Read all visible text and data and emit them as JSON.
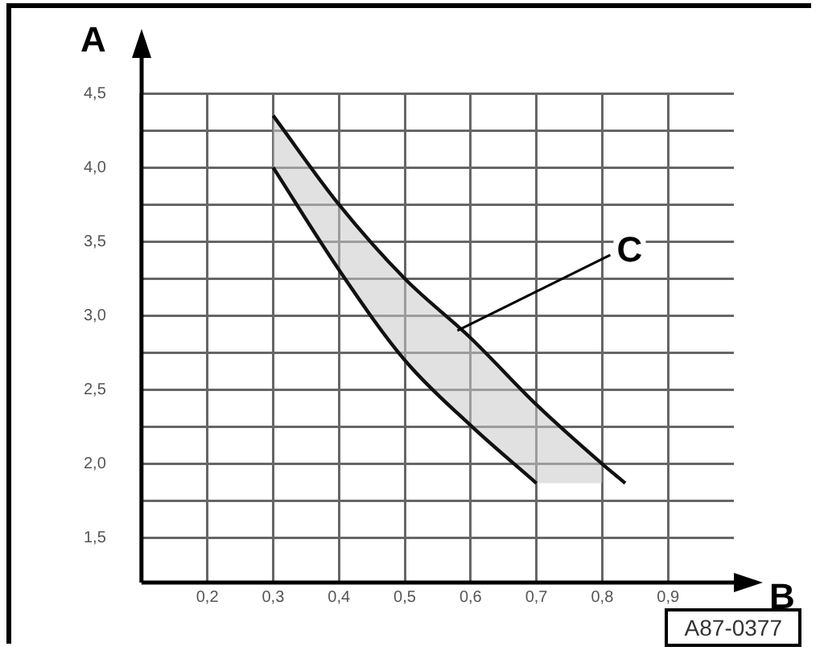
{
  "chart_data": {
    "type": "line",
    "xlabel": "B",
    "ylabel": "A",
    "xlim": [
      0.1,
      1.0
    ],
    "ylim": [
      1.2,
      4.5
    ],
    "xticks": [
      {
        "value": 0.2,
        "label": "0,2"
      },
      {
        "value": 0.3,
        "label": "0,3"
      },
      {
        "value": 0.4,
        "label": "0,4"
      },
      {
        "value": 0.5,
        "label": "0,5"
      },
      {
        "value": 0.6,
        "label": "0,6"
      },
      {
        "value": 0.7,
        "label": "0,7"
      },
      {
        "value": 0.8,
        "label": "0,8"
      },
      {
        "value": 0.9,
        "label": "0,9"
      }
    ],
    "yticks": [
      {
        "value": 1.5,
        "label": "1,5"
      },
      {
        "value": 1.75,
        "label": null
      },
      {
        "value": 2,
        "label": "2,0"
      },
      {
        "value": 2.25,
        "label": null
      },
      {
        "value": 2.5,
        "label": "2,5"
      },
      {
        "value": 2.75,
        "label": null
      },
      {
        "value": 3,
        "label": "3,0"
      },
      {
        "value": 3.25,
        "label": null
      },
      {
        "value": 3.5,
        "label": "3,5"
      },
      {
        "value": 3.75,
        "label": null
      },
      {
        "value": 4,
        "label": "4,0"
      },
      {
        "value": 4.25,
        "label": null
      },
      {
        "value": 4.5,
        "label": "4,5"
      }
    ],
    "series": [
      {
        "color": "#111111",
        "x": [
          0.3,
          0.4,
          0.5,
          0.6,
          0.7
        ],
        "values": [
          4.0,
          3.31,
          2.7,
          2.26,
          1.87
        ]
      },
      {
        "color": "#111111",
        "x": [
          0.3,
          0.4,
          0.5,
          0.6,
          0.7,
          0.8,
          0.835
        ],
        "values": [
          4.35,
          3.75,
          3.25,
          2.85,
          2.4,
          2.0,
          1.87
        ],
        "lower": [
          4.0,
          3.31,
          2.7,
          2.26,
          1.87,
          1.87,
          null
        ],
        "upper": [
          4.35,
          3.75,
          3.25,
          2.85,
          2.4,
          2.0,
          null
        ]
      }
    ],
    "annotations": [
      {
        "text": "C",
        "x": 0.58,
        "y": 2.9
      },
      "A87-0377"
    ],
    "grid": true,
    "legend": false,
    "marker": "none",
    "line_style": "solid"
  }
}
